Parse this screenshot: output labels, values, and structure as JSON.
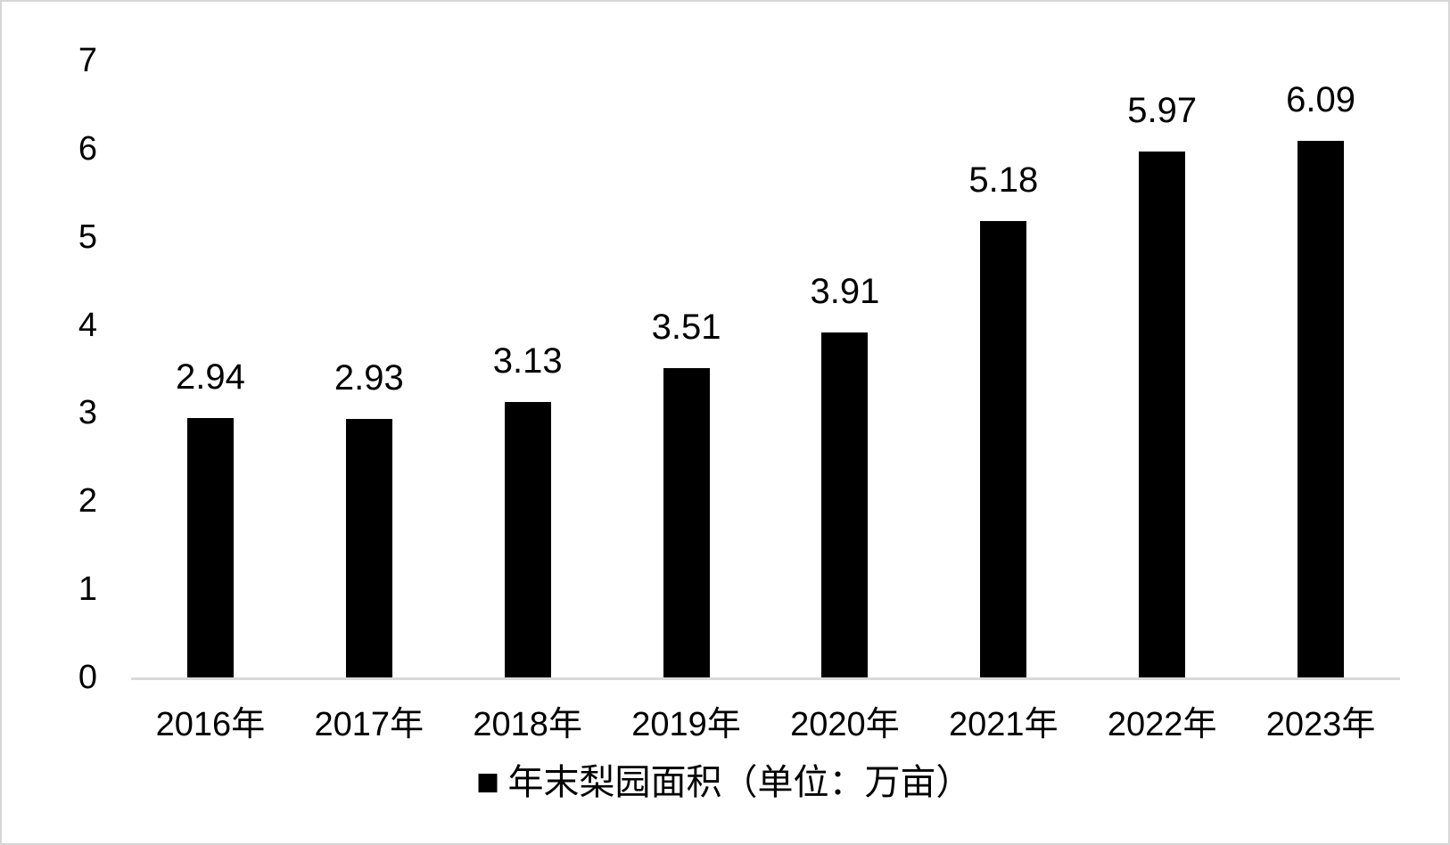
{
  "chart_data": {
    "type": "bar",
    "title": "",
    "xlabel": "",
    "ylabel": "",
    "categories": [
      "2016年",
      "2017年",
      "2018年",
      "2019年",
      "2020年",
      "2021年",
      "2022年",
      "2023年"
    ],
    "values": [
      2.94,
      2.93,
      3.13,
      3.51,
      3.91,
      5.18,
      5.97,
      6.09
    ],
    "data_labels": [
      "2.94",
      "2.93",
      "3.13",
      "3.51",
      "3.91",
      "5.18",
      "5.97",
      "6.09"
    ],
    "ylim": [
      0,
      7
    ],
    "yticks": [
      0,
      1,
      2,
      3,
      4,
      5,
      6,
      7
    ],
    "grid": false,
    "legend": {
      "label": "年末梨园面积（单位：万亩）",
      "position": "bottom",
      "marker": "square"
    },
    "colors": {
      "bar": "#000000",
      "text": "#000000",
      "axis_line": "#d9d9d9",
      "frame_border": "#d6d6d6",
      "background": "#ffffff"
    }
  }
}
